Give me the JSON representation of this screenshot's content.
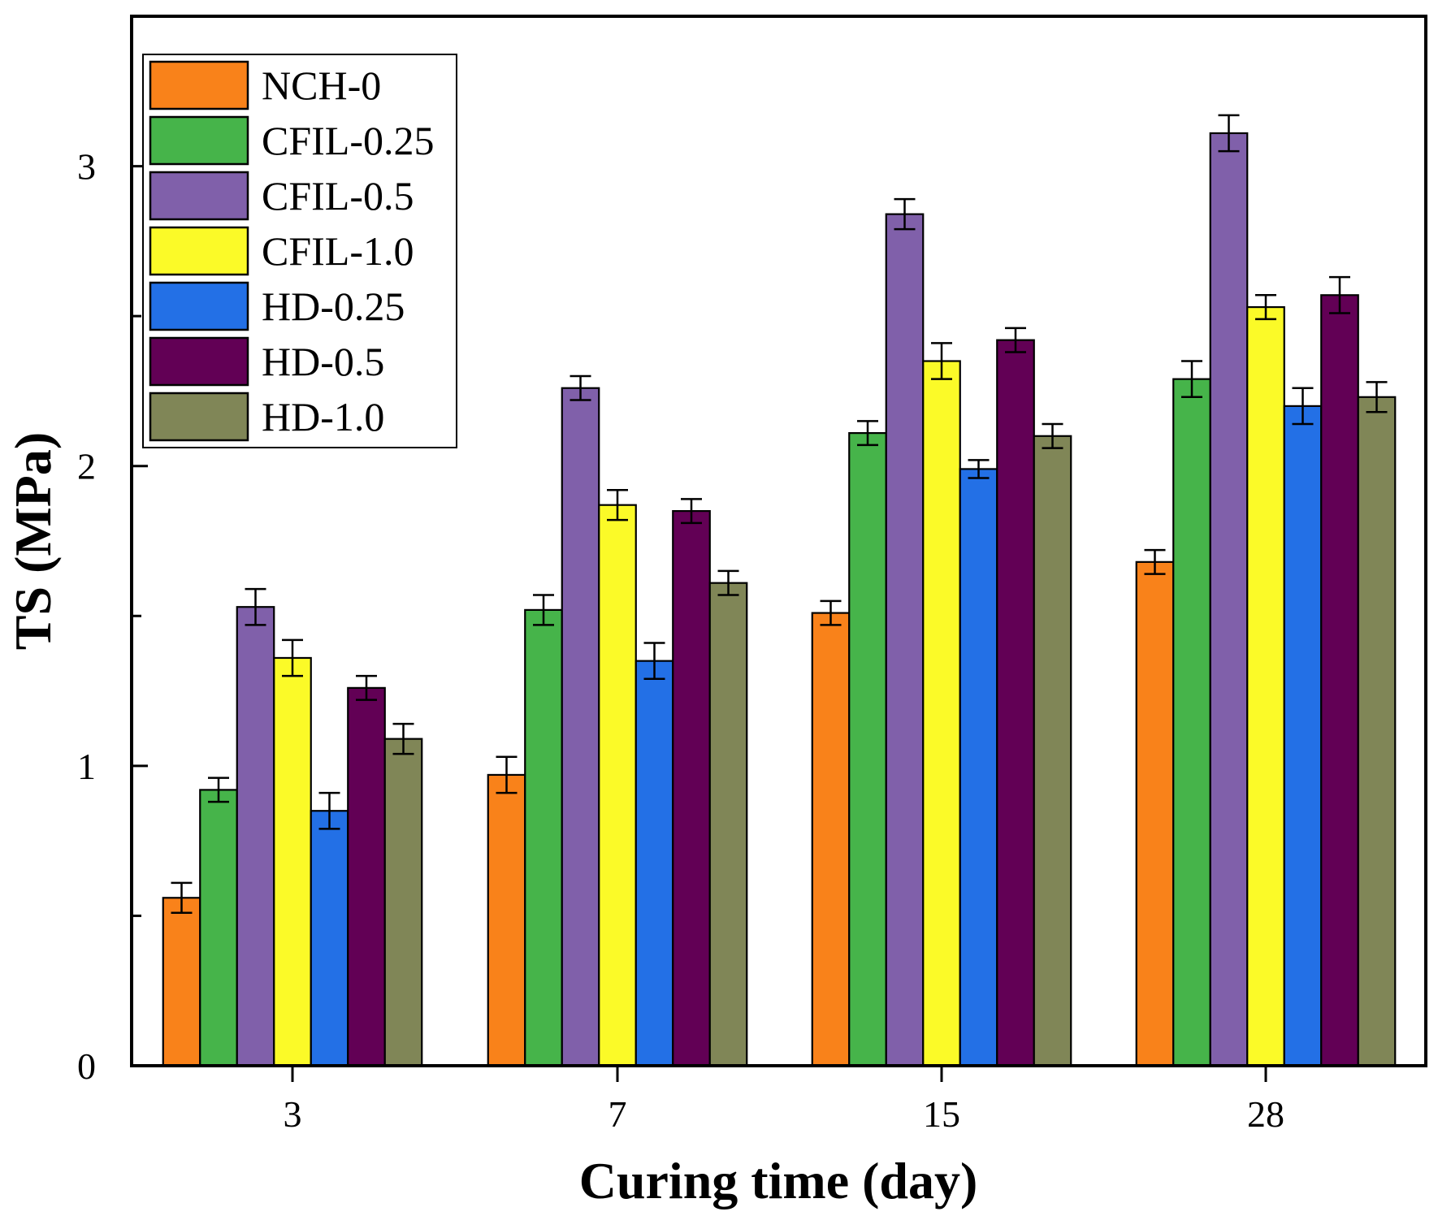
{
  "chart_data": {
    "type": "bar",
    "title": "",
    "xlabel": "Curing time (day)",
    "ylabel": "TS (MPa)",
    "categories": [
      "3",
      "7",
      "15",
      "28"
    ],
    "ylim": [
      0,
      3.5
    ],
    "yticks": [
      "0",
      "1",
      "2",
      "3"
    ],
    "legend_position": "top-left",
    "series": [
      {
        "name": "NCH-0",
        "color": "#F9821A",
        "values": [
          0.56,
          0.97,
          1.51,
          1.68
        ],
        "errors": [
          0.05,
          0.06,
          0.04,
          0.04
        ]
      },
      {
        "name": "CFIL-0.25",
        "color": "#46B44A",
        "values": [
          0.92,
          1.52,
          2.11,
          2.29
        ],
        "errors": [
          0.04,
          0.05,
          0.04,
          0.06
        ]
      },
      {
        "name": "CFIL-0.5",
        "color": "#8060AA",
        "values": [
          1.53,
          2.26,
          2.84,
          3.11
        ],
        "errors": [
          0.06,
          0.04,
          0.05,
          0.06
        ]
      },
      {
        "name": "CFIL-1.0",
        "color": "#FBFA28",
        "values": [
          1.36,
          1.87,
          2.35,
          2.53
        ],
        "errors": [
          0.06,
          0.05,
          0.06,
          0.04
        ]
      },
      {
        "name": "HD-0.25",
        "color": "#2370E6",
        "values": [
          0.85,
          1.35,
          1.99,
          2.2
        ],
        "errors": [
          0.06,
          0.06,
          0.03,
          0.06
        ]
      },
      {
        "name": "HD-0.5",
        "color": "#620055",
        "values": [
          1.26,
          1.85,
          2.42,
          2.57
        ],
        "errors": [
          0.04,
          0.04,
          0.04,
          0.06
        ]
      },
      {
        "name": "HD-1.0",
        "color": "#808657",
        "values": [
          1.09,
          1.61,
          2.1,
          2.23
        ],
        "errors": [
          0.05,
          0.04,
          0.04,
          0.05
        ]
      }
    ]
  }
}
